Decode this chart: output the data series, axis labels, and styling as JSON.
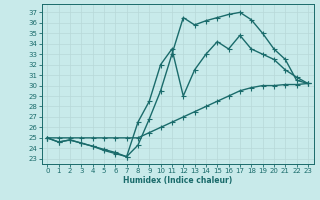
{
  "bg_color": "#c8eaea",
  "line_color": "#1a6b6b",
  "grid_color": "#b8d8d8",
  "xlabel": "Humidex (Indice chaleur)",
  "xlim": [
    -0.5,
    23.5
  ],
  "ylim": [
    22.5,
    37.8
  ],
  "yticks": [
    23,
    24,
    25,
    26,
    27,
    28,
    29,
    30,
    31,
    32,
    33,
    34,
    35,
    36,
    37
  ],
  "xticks": [
    0,
    1,
    2,
    3,
    4,
    5,
    6,
    7,
    8,
    9,
    10,
    11,
    12,
    13,
    14,
    15,
    16,
    17,
    18,
    19,
    20,
    21,
    22,
    23
  ],
  "line1_x": [
    0,
    1,
    2,
    3,
    4,
    5,
    6,
    7,
    8,
    9,
    10,
    11,
    12,
    13,
    14,
    15,
    16,
    17,
    18,
    19,
    20,
    21,
    22,
    23
  ],
  "line1_y": [
    25.0,
    24.6,
    24.8,
    24.5,
    24.2,
    23.8,
    23.5,
    23.2,
    24.3,
    26.8,
    29.5,
    33.0,
    36.5,
    35.8,
    36.2,
    36.5,
    36.8,
    37.0,
    36.3,
    35.0,
    33.5,
    32.5,
    30.5,
    30.2
  ],
  "line2_x": [
    0,
    1,
    2,
    3,
    4,
    5,
    6,
    7,
    8,
    9,
    10,
    11,
    12,
    13,
    14,
    15,
    16,
    17,
    18,
    19,
    20,
    21,
    22,
    23
  ],
  "line2_y": [
    25.0,
    25.0,
    25.0,
    25.0,
    25.0,
    25.0,
    25.0,
    25.0,
    25.0,
    25.5,
    26.0,
    26.5,
    27.0,
    27.5,
    28.0,
    28.5,
    29.0,
    29.5,
    29.8,
    30.0,
    30.0,
    30.1,
    30.1,
    30.2
  ],
  "line3_x": [
    0,
    1,
    2,
    3,
    4,
    5,
    6,
    7,
    8,
    9,
    10,
    11,
    12,
    13,
    14,
    15,
    16,
    17,
    18,
    19,
    20,
    21,
    22,
    23
  ],
  "line3_y": [
    25.0,
    24.6,
    24.8,
    24.5,
    24.2,
    23.9,
    23.6,
    23.2,
    26.5,
    28.5,
    32.0,
    33.5,
    29.0,
    31.5,
    33.0,
    34.2,
    33.5,
    34.8,
    33.5,
    33.0,
    32.5,
    31.5,
    30.8,
    30.2
  ],
  "linewidth": 1.0,
  "marker_size": 2.0,
  "tick_fontsize": 5.0,
  "xlabel_fontsize": 5.5
}
